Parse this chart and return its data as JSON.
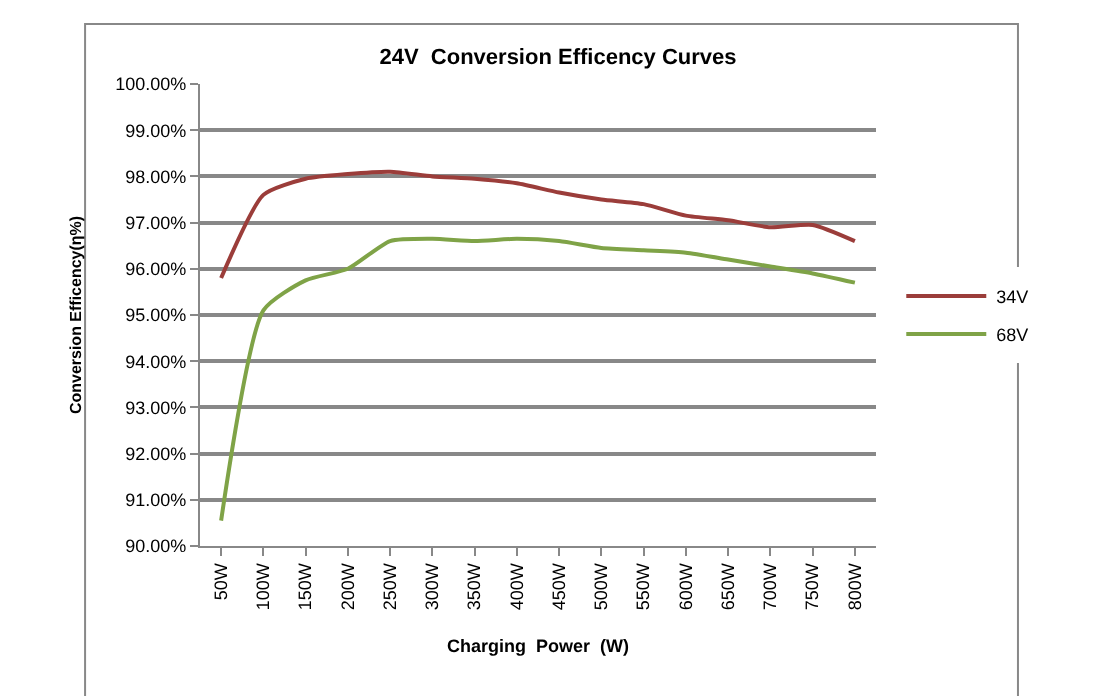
{
  "chart_data": {
    "type": "line",
    "title": "24V  Conversion Efficency Curves",
    "xlabel": "Charging  Power  (W)",
    "ylabel": "Conversion Efficency(η%)",
    "categories": [
      "50W",
      "100W",
      "150W",
      "200W",
      "250W",
      "300W",
      "350W",
      "400W",
      "450W",
      "500W",
      "550W",
      "600W",
      "650W",
      "700W",
      "750W",
      "800W"
    ],
    "series": [
      {
        "name": "34V",
        "color": "#9b3d3a",
        "values": [
          95.8,
          97.6,
          97.95,
          98.05,
          98.1,
          98.0,
          97.95,
          97.85,
          97.65,
          97.5,
          97.4,
          97.15,
          97.05,
          96.9,
          96.95,
          96.6
        ]
      },
      {
        "name": "68V",
        "color": "#7fa347",
        "values": [
          90.55,
          95.1,
          95.75,
          96.0,
          96.6,
          96.65,
          96.6,
          96.65,
          96.6,
          96.45,
          96.4,
          96.35,
          96.2,
          96.05,
          95.9,
          95.7
        ]
      }
    ],
    "ylim": [
      90,
      100
    ],
    "yticks": [
      {
        "value": 90,
        "label": "90.00%"
      },
      {
        "value": 91,
        "label": "91.00%"
      },
      {
        "value": 92,
        "label": "92.00%"
      },
      {
        "value": 93,
        "label": "93.00%"
      },
      {
        "value": 94,
        "label": "94.00%"
      },
      {
        "value": 95,
        "label": "95.00%"
      },
      {
        "value": 96,
        "label": "96.00%"
      },
      {
        "value": 97,
        "label": "97.00%"
      },
      {
        "value": 98,
        "label": "98.00%"
      },
      {
        "value": 99,
        "label": "99.00%"
      },
      {
        "value": 100,
        "label": "100.00%"
      }
    ],
    "grid": "y",
    "legend": "right",
    "marker": "none",
    "line_style": "solid"
  }
}
